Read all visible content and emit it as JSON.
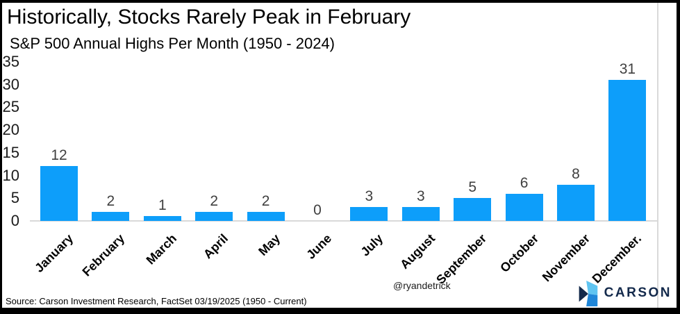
{
  "title": "Historically, Stocks Rarely Peak in February",
  "subtitle": "S&P 500 Annual Highs Per Month (1950 - 2024)",
  "chart_data": {
    "type": "bar",
    "title": "Historically, Stocks Rarely Peak in February",
    "subtitle": "S&P 500 Annual Highs Per Month (1950 - 2024)",
    "categories": [
      "January",
      "February",
      "March",
      "April",
      "May",
      "June",
      "July",
      "August",
      "September",
      "October",
      "November",
      "December."
    ],
    "values": [
      12,
      2,
      1,
      2,
      2,
      0,
      3,
      3,
      5,
      6,
      8,
      31
    ],
    "xlabel": "",
    "ylabel": "",
    "ylim": [
      0,
      35
    ],
    "yticks": [
      0,
      5,
      10,
      15,
      20,
      25,
      30,
      35
    ],
    "grid": false,
    "legend": false,
    "data_labels": true,
    "bar_color": "#0D9EFA",
    "value_label_color": "#3f3f3f"
  },
  "footer": {
    "source": "Source: Carson Investment Research, FactSet 03/19/2025 (1950 - Current)",
    "handle": "@ryandetrick",
    "logo_text": "CARSON"
  },
  "colors": {
    "bar": "#0D9EFA",
    "axis_line": "#d9d9d9",
    "logo_navy": "#13294B",
    "logo_light_blue": "#5FC4F1",
    "logo_mid_blue": "#1F86D8"
  }
}
